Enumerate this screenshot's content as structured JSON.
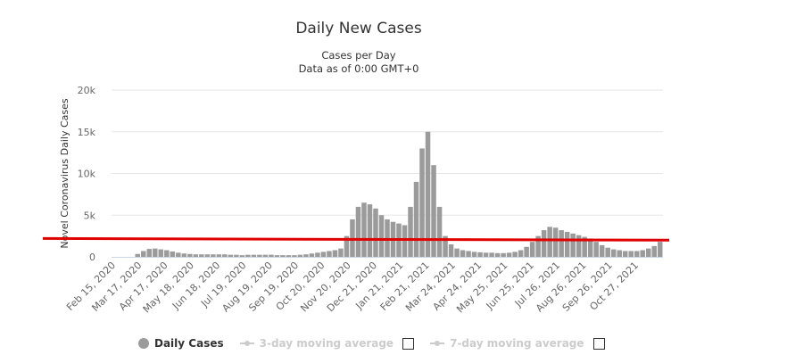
{
  "chart_data": {
    "type": "bar",
    "title": "Daily New Cases",
    "subtitle": [
      "Cases per Day",
      "Data as of 0:00 GMT+0"
    ],
    "ylabel": "Novel Coronavirus Daily Cases",
    "ylim": [
      0,
      20000
    ],
    "y_ticks": [
      "0",
      "5k",
      "10k",
      "15k",
      "20k"
    ],
    "x_ticks": [
      "Feb 15, 2020",
      "Mar 17, 2020",
      "Apr 17, 2020",
      "May 18, 2020",
      "Jun 18, 2020",
      "Jul 19, 2020",
      "Aug 19, 2020",
      "Sep 19, 2020",
      "Oct 20, 2020",
      "Nov 20, 2020",
      "Dec 21, 2020",
      "Jan 21, 2021",
      "Feb 21, 2021",
      "Mar 24, 2021",
      "Apr 24, 2021",
      "May 25, 2021",
      "Jun 25, 2021",
      "Jul 26, 2021",
      "Aug 26, 2021",
      "Sep 26, 2021",
      "Oct 27, 2021"
    ],
    "grid": true,
    "legend_placement": "bottom-center",
    "bar_color": "#9b9b9b",
    "reference_line": {
      "color": "#e00000",
      "value_start": 2200,
      "value_end": 2000
    },
    "series": [
      {
        "name": "Daily Cases",
        "start_date": "Feb 15, 2020",
        "interval_days": 7,
        "values": [
          0,
          0,
          0,
          0,
          350,
          700,
          950,
          1000,
          900,
          800,
          650,
          500,
          400,
          350,
          300,
          300,
          300,
          300,
          300,
          300,
          250,
          250,
          200,
          250,
          250,
          250,
          250,
          250,
          200,
          200,
          200,
          200,
          250,
          300,
          400,
          500,
          600,
          700,
          800,
          1000,
          2500,
          4500,
          6000,
          6500,
          6300,
          5800,
          5000,
          4500,
          4200,
          4000,
          3800,
          6000,
          9000,
          13000,
          15000,
          11000,
          6000,
          2500,
          1500,
          1000,
          800,
          700,
          600,
          550,
          500,
          500,
          450,
          450,
          500,
          600,
          800,
          1200,
          1800,
          2500,
          3200,
          3600,
          3500,
          3200,
          3000,
          2800,
          2600,
          2400,
          2200,
          1800,
          1400,
          1100,
          900,
          800,
          700,
          700,
          700,
          800,
          1000,
          1300,
          1800
        ]
      }
    ]
  },
  "legend": {
    "items": [
      {
        "label": "Daily Cases"
      },
      {
        "label": "3-day moving average"
      },
      {
        "label": "7-day moving average"
      }
    ]
  }
}
